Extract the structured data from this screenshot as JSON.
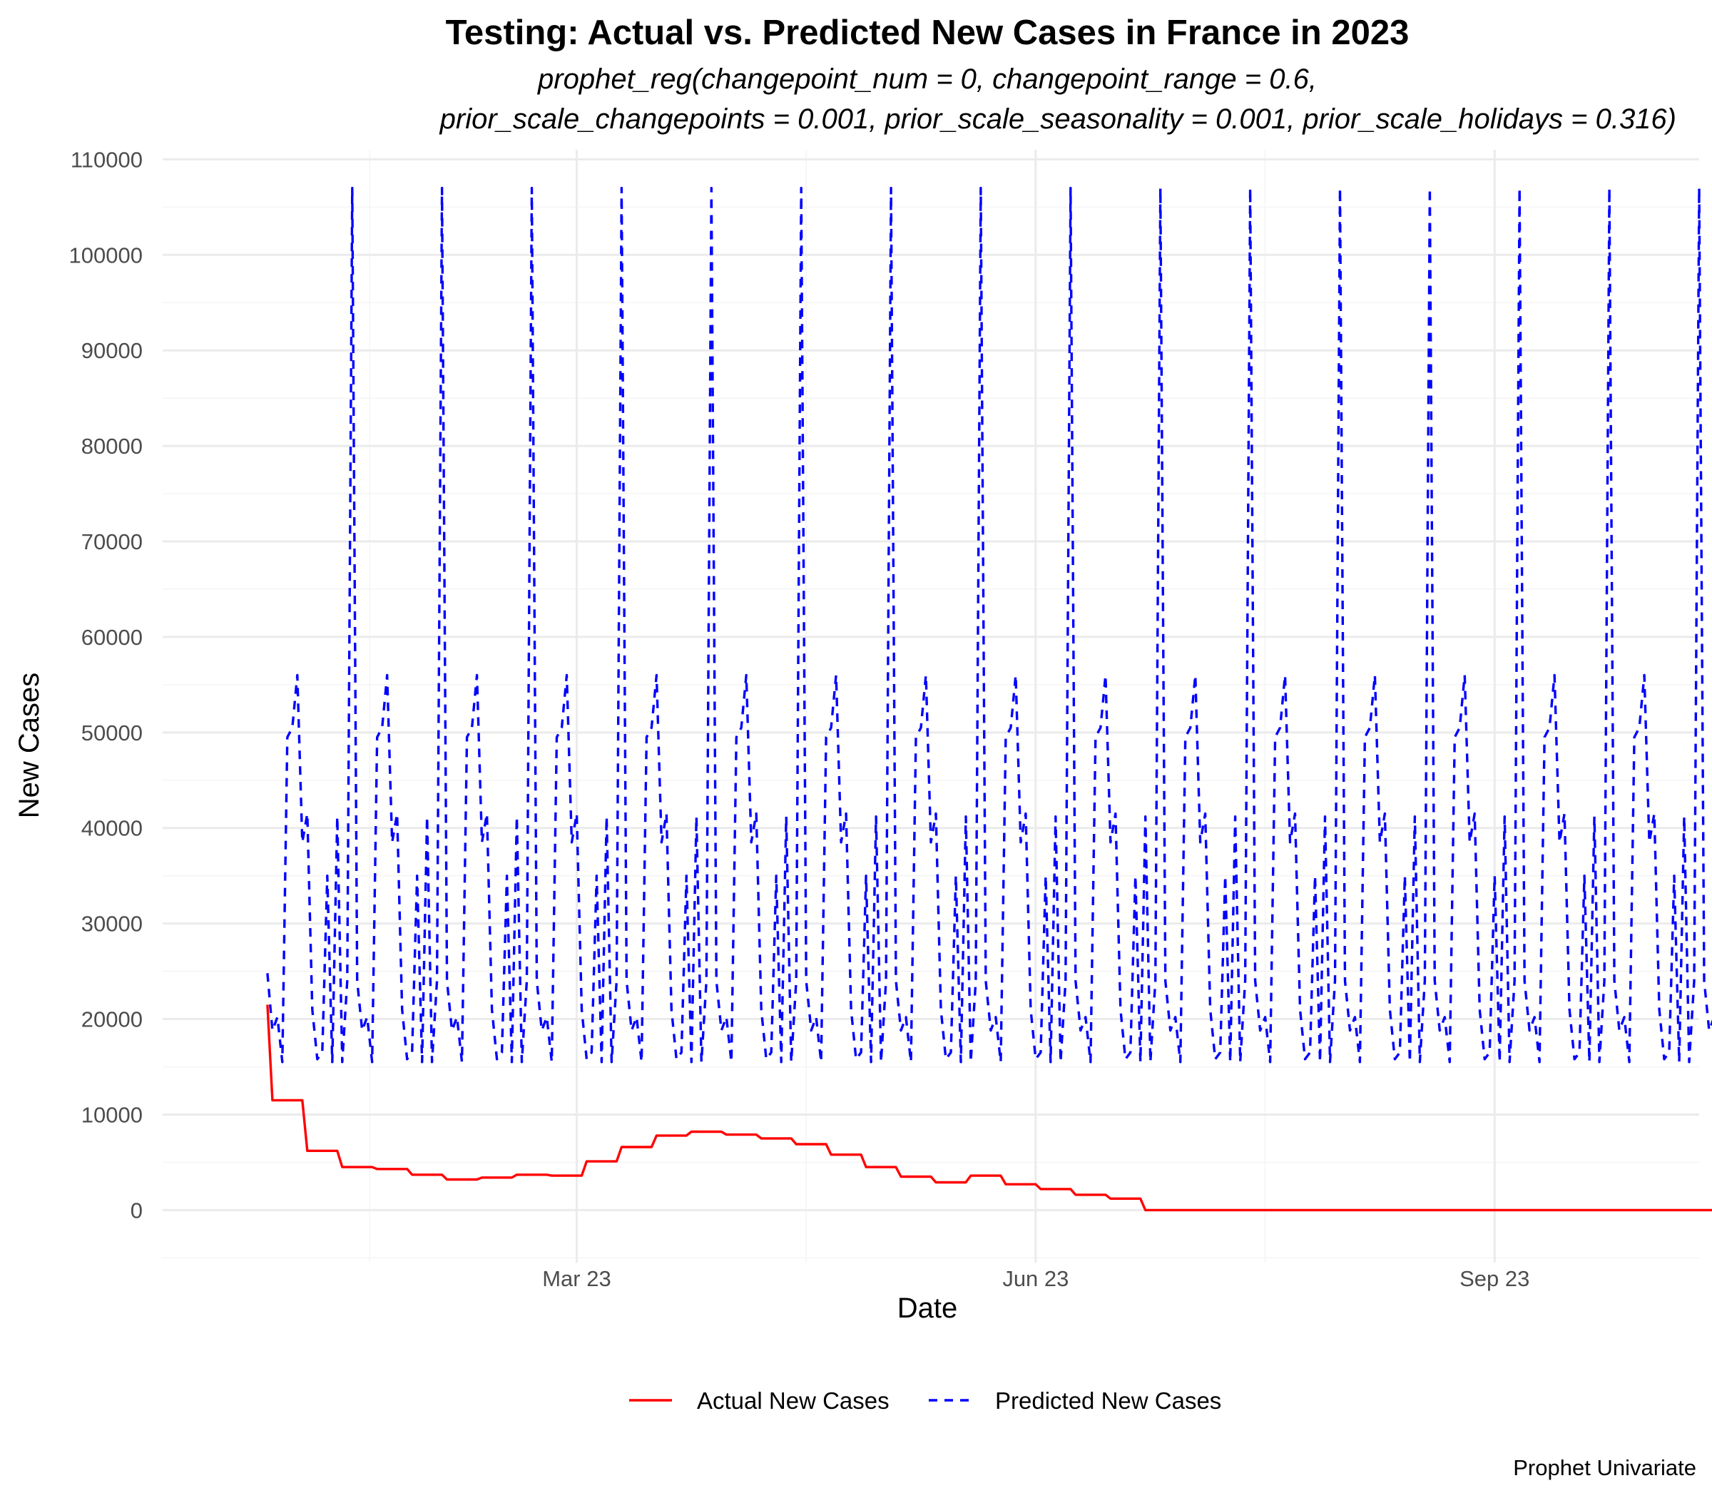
{
  "chart_data": {
    "type": "line",
    "title": "Testing: Actual vs. Predicted New Cases in France in 2023",
    "subtitle_lines": [
      "prophet_reg(changepoint_num = 0, changepoint_range = 0.6,",
      "prior_scale_changepoints = 0.001, prior_scale_seasonality = 0.001, prior_scale_holidays = 0.316)"
    ],
    "xlabel": "Date",
    "ylabel": "New Cases",
    "caption": "Prophet Univariate",
    "x_range": [
      "2022-12-08",
      "2023-10-12"
    ],
    "ylim": [
      -5500,
      111000
    ],
    "x_ticks": [
      {
        "date": "2023-03-01",
        "label": "Mar 23"
      },
      {
        "date": "2023-06-01",
        "label": "Jun 23"
      },
      {
        "date": "2023-09-01",
        "label": "Sep 23"
      }
    ],
    "y_ticks": [
      0,
      10000,
      20000,
      30000,
      40000,
      50000,
      60000,
      70000,
      80000,
      90000,
      100000,
      110000
    ],
    "legend_position": "bottom",
    "grid": true,
    "series_start_date": "2022-12-29",
    "series": [
      {
        "name": "Actual New Cases",
        "color": "#ff0000",
        "style": "solid",
        "values": [
          21500,
          11500,
          11500,
          11500,
          11500,
          11500,
          11500,
          11500,
          6200,
          6200,
          6200,
          6200,
          6200,
          6200,
          6200,
          4500,
          4500,
          4500,
          4500,
          4500,
          4500,
          4500,
          4300,
          4300,
          4300,
          4300,
          4300,
          4300,
          4300,
          3700,
          3700,
          3700,
          3700,
          3700,
          3700,
          3700,
          3200,
          3200,
          3200,
          3200,
          3200,
          3200,
          3200,
          3400,
          3400,
          3400,
          3400,
          3400,
          3400,
          3400,
          3700,
          3700,
          3700,
          3700,
          3700,
          3700,
          3700,
          3600,
          3600,
          3600,
          3600,
          3600,
          3600,
          3600,
          5100,
          5100,
          5100,
          5100,
          5100,
          5100,
          5100,
          6600,
          6600,
          6600,
          6600,
          6600,
          6600,
          6600,
          7800,
          7800,
          7800,
          7800,
          7800,
          7800,
          7800,
          8200,
          8200,
          8200,
          8200,
          8200,
          8200,
          8200,
          7900,
          7900,
          7900,
          7900,
          7900,
          7900,
          7900,
          7500,
          7500,
          7500,
          7500,
          7500,
          7500,
          7500,
          6900,
          6900,
          6900,
          6900,
          6900,
          6900,
          6900,
          5800,
          5800,
          5800,
          5800,
          5800,
          5800,
          5800,
          4500,
          4500,
          4500,
          4500,
          4500,
          4500,
          4500,
          3500,
          3500,
          3500,
          3500,
          3500,
          3500,
          3500,
          2900,
          2900,
          2900,
          2900,
          2900,
          2900,
          2900,
          3600,
          3600,
          3600,
          3600,
          3600,
          3600,
          3600,
          2700,
          2700,
          2700,
          2700,
          2700,
          2700,
          2700,
          2200,
          2200,
          2200,
          2200,
          2200,
          2200,
          2200,
          1600,
          1600,
          1600,
          1600,
          1600,
          1600,
          1600,
          1200,
          1200,
          1200,
          1200,
          1200,
          1200,
          1200,
          0,
          0,
          0,
          0,
          0,
          0,
          0,
          0,
          0,
          0,
          0,
          0,
          0,
          0,
          0,
          0,
          0,
          0,
          0,
          0,
          0,
          0,
          0,
          0,
          0,
          0,
          0,
          0,
          0,
          0,
          0,
          0,
          0,
          0,
          0,
          0,
          0,
          0,
          0,
          0,
          0,
          0,
          0,
          0,
          0,
          0,
          0,
          0,
          0,
          0,
          0,
          0,
          0,
          0,
          0,
          0,
          0,
          0,
          0,
          0,
          0,
          0,
          0,
          0,
          0,
          0,
          0,
          0,
          0,
          0,
          0,
          0,
          0,
          0,
          0,
          0,
          0,
          0,
          0,
          0,
          0,
          0,
          0,
          0,
          0,
          0,
          0,
          0,
          0,
          0,
          0,
          0,
          0,
          0,
          0,
          0,
          0,
          0,
          0,
          0,
          0,
          0,
          0,
          0,
          0,
          0,
          0,
          0,
          0,
          0,
          0,
          0,
          0,
          0,
          0
        ]
      },
      {
        "name": "Predicted New Cases",
        "color": "#0000ff",
        "style": "dashed",
        "values": [
          24800,
          18800,
          20200,
          15500,
          49500,
          50500,
          56000,
          38500,
          41500,
          21000,
          15800,
          16500,
          35000,
          15500,
          41200,
          15500,
          24000,
          107000,
          24000,
          18800,
          20200,
          15500,
          49500,
          50500,
          56000,
          38500,
          41500,
          21000,
          15800,
          16500,
          35000,
          15500,
          41200,
          15500,
          24000,
          107000,
          24000,
          18800,
          20200,
          15500,
          49500,
          50500,
          56000,
          38500,
          41500,
          21000,
          15800,
          16500,
          35000,
          15500,
          41200,
          15500,
          24000,
          107000,
          24000,
          18800,
          20200,
          15500,
          49500,
          50500,
          56000,
          38500,
          41500,
          21000,
          15800,
          16500,
          35000,
          15500,
          41200,
          15500,
          24000,
          107000,
          24000,
          18800,
          20200,
          15500,
          49500,
          50500,
          56000,
          38500,
          41500,
          21000,
          15800,
          16500,
          35000,
          15500,
          41200,
          15500,
          24000,
          107000,
          24000,
          18800,
          20200,
          15500,
          49500,
          50500,
          56000,
          38500,
          41500,
          21000,
          15800,
          16500,
          35000,
          15500,
          41200,
          15500,
          24000,
          107000,
          24000,
          18800,
          20200,
          15500,
          49500,
          50500,
          56000,
          38500,
          41500,
          21000,
          15800,
          16500,
          35000,
          15500,
          41200,
          15500,
          24000,
          107000,
          24000,
          18800,
          20200,
          15500,
          49500,
          50500,
          56000,
          38500,
          41500,
          21000,
          15800,
          16500,
          35000,
          15500,
          41200,
          15500,
          24000,
          107000,
          24000,
          18800,
          20200,
          15500,
          49500,
          50500,
          56000,
          38500,
          41500,
          21000,
          15800,
          16500,
          35000,
          15500,
          41200,
          15500,
          24000,
          107000,
          24000,
          18800,
          20200,
          15500,
          49500,
          50500,
          56000,
          38500,
          41500,
          21000,
          15800,
          16500,
          35000,
          15500,
          41200,
          15500,
          24000,
          107000,
          24000,
          18800,
          20200,
          15500,
          49500,
          50500,
          56000,
          38500,
          41500,
          21000,
          15800,
          16500,
          35000,
          15500,
          41200,
          15500,
          24000,
          107000,
          24000,
          18800,
          20200,
          15500,
          49500,
          50500,
          56000,
          38500,
          41500,
          21000,
          15800,
          16500,
          35000,
          15500,
          41200,
          15500,
          24000,
          107000,
          24000,
          18800,
          20200,
          15500,
          49500,
          50500,
          56000,
          38500,
          41500,
          21000,
          15800,
          16500,
          35000,
          15500,
          41200,
          15500,
          24000,
          107000,
          24000,
          18800,
          20200,
          15500,
          49500,
          50500,
          56000,
          38500,
          41500,
          21000,
          15800,
          16500,
          35000,
          15500,
          41200,
          15500,
          24000,
          107000,
          24000,
          18800,
          20200,
          15500,
          49500,
          50500,
          56000,
          38500,
          41500,
          21000,
          15800,
          16500,
          35000,
          15500,
          41200,
          15500,
          24000,
          107000,
          24000,
          18800,
          20200,
          15500,
          49500,
          50500,
          56000,
          38500,
          41500,
          21000,
          15800,
          16500,
          35000,
          15500,
          41200,
          15500,
          24000,
          107000,
          24000,
          18800,
          20200
        ]
      }
    ]
  }
}
